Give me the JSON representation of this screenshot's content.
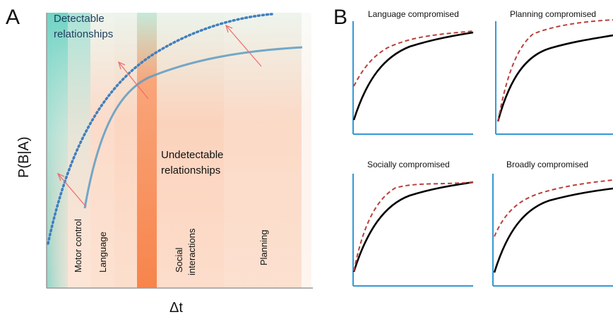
{
  "panel_a": {
    "panel_letter": "A",
    "y_label": "P(B|A)",
    "x_label": "Δt",
    "detectable_label_line1": "Detectable",
    "detectable_label_line2": "relationships",
    "undetectable_label_line1": "Undetectable",
    "undetectable_label_line2": "relationships",
    "bands": [
      {
        "label": "Motor control"
      },
      {
        "label": "Language"
      },
      {
        "label": "Social"
      },
      {
        "label": "interactions"
      },
      {
        "label": "Planning"
      }
    ]
  },
  "panel_b": {
    "panel_letter": "B",
    "subplots": [
      {
        "title": "Language compromised"
      },
      {
        "title": "Planning compromised"
      },
      {
        "title": "Socially compromised"
      },
      {
        "title": "Broadly compromised"
      }
    ]
  },
  "colors": {
    "teal": "#7fd6c8",
    "orange": "#f8824a",
    "curve_blue": "#5a9cc4",
    "dotted_blue": "#3f7fbf",
    "red_arrow": "#ee6f6f",
    "dashed_red": "#b8403c",
    "axis_blue": "#3399d6"
  }
}
